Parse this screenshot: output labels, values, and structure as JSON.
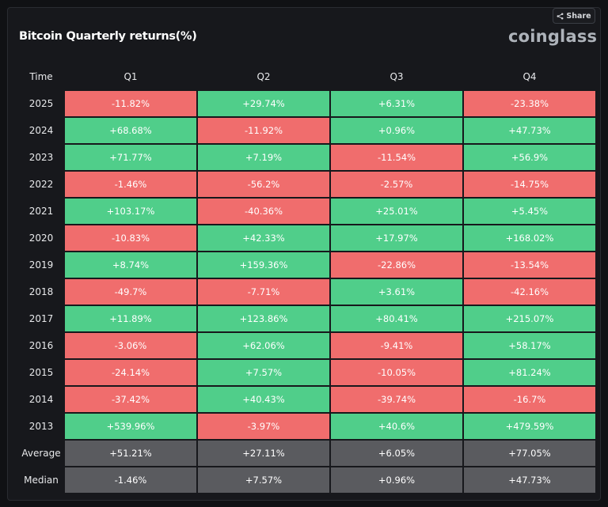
{
  "header": {
    "title": "Bitcoin Quarterly returns(%)",
    "share_label": "Share",
    "brand": "coinglass"
  },
  "colors": {
    "positive": "#50ce8a",
    "negative": "#f06d6d",
    "summary": "#5a5b5f",
    "background": "#17181c"
  },
  "chart_data": {
    "type": "table",
    "title": "Bitcoin Quarterly returns(%)",
    "columns": [
      "Time",
      "Q1",
      "Q2",
      "Q3",
      "Q4"
    ],
    "rows": [
      {
        "label": "2025",
        "values": [
          "-11.82%",
          "+29.74%",
          "+6.31%",
          "-23.38%"
        ]
      },
      {
        "label": "2024",
        "values": [
          "+68.68%",
          "-11.92%",
          "+0.96%",
          "+47.73%"
        ]
      },
      {
        "label": "2023",
        "values": [
          "+71.77%",
          "+7.19%",
          "-11.54%",
          "+56.9%"
        ]
      },
      {
        "label": "2022",
        "values": [
          "-1.46%",
          "-56.2%",
          "-2.57%",
          "-14.75%"
        ]
      },
      {
        "label": "2021",
        "values": [
          "+103.17%",
          "-40.36%",
          "+25.01%",
          "+5.45%"
        ]
      },
      {
        "label": "2020",
        "values": [
          "-10.83%",
          "+42.33%",
          "+17.97%",
          "+168.02%"
        ]
      },
      {
        "label": "2019",
        "values": [
          "+8.74%",
          "+159.36%",
          "-22.86%",
          "-13.54%"
        ]
      },
      {
        "label": "2018",
        "values": [
          "-49.7%",
          "-7.71%",
          "+3.61%",
          "-42.16%"
        ]
      },
      {
        "label": "2017",
        "values": [
          "+11.89%",
          "+123.86%",
          "+80.41%",
          "+215.07%"
        ]
      },
      {
        "label": "2016",
        "values": [
          "-3.06%",
          "+62.06%",
          "-9.41%",
          "+58.17%"
        ]
      },
      {
        "label": "2015",
        "values": [
          "-24.14%",
          "+7.57%",
          "-10.05%",
          "+81.24%"
        ]
      },
      {
        "label": "2014",
        "values": [
          "-37.42%",
          "+40.43%",
          "-39.74%",
          "-16.7%"
        ]
      },
      {
        "label": "2013",
        "values": [
          "+539.96%",
          "-3.97%",
          "+40.6%",
          "+479.59%"
        ]
      }
    ],
    "summary_rows": [
      {
        "label": "Average",
        "values": [
          "+51.21%",
          "+27.11%",
          "+6.05%",
          "+77.05%"
        ]
      },
      {
        "label": "Median",
        "values": [
          "-1.46%",
          "+7.57%",
          "+0.96%",
          "+47.73%"
        ]
      }
    ]
  }
}
